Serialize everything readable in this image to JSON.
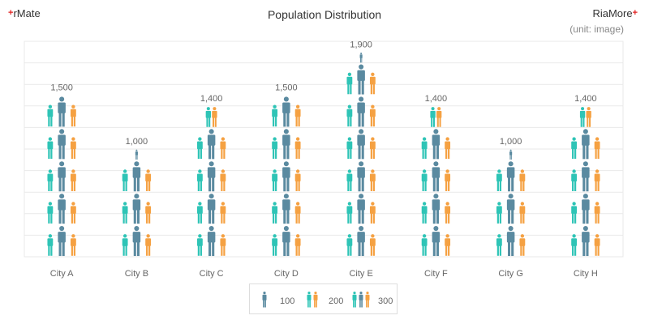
{
  "header": {
    "brand_left": "rMate",
    "brand_right": "RiaMore",
    "title": "Population Distribution",
    "unit": "(unit: image)"
  },
  "colors": {
    "teal": "#2ec4b6",
    "steel": "#5a8aa0",
    "orange": "#f5a142",
    "grid": "#e9e9e9",
    "plus": "#e02020"
  },
  "legend": {
    "items": [
      {
        "icon": "single-person-icon",
        "label": "100"
      },
      {
        "icon": "two-person-icon",
        "label": "200"
      },
      {
        "icon": "three-person-icon",
        "label": "300"
      }
    ]
  },
  "chart_data": {
    "type": "pictograph",
    "title": "Population Distribution",
    "unit": "(unit: image)",
    "categories": [
      "City A",
      "City B",
      "City C",
      "City D",
      "City E",
      "City F",
      "City G",
      "City H"
    ],
    "values": [
      1500,
      1000,
      1400,
      1500,
      1900,
      1400,
      1000,
      1400
    ],
    "value_labels": [
      "1,500",
      "1,000",
      "1,400",
      "1,500",
      "1,900",
      "1,400",
      "1,000",
      "1,400"
    ],
    "ylim": [
      0,
      2000
    ],
    "grid": true,
    "legend_position": "bottom"
  }
}
